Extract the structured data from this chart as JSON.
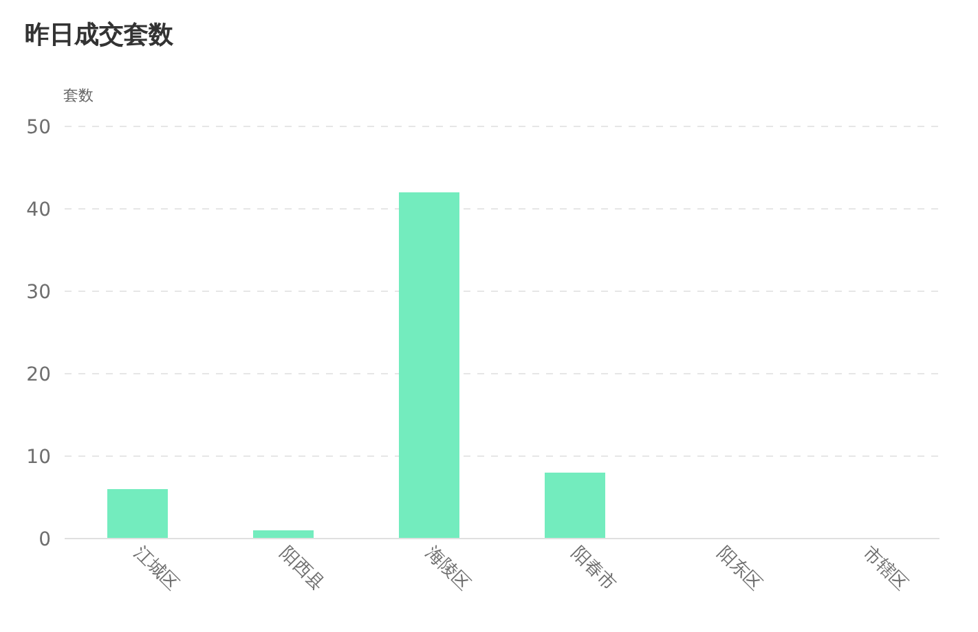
{
  "chart_data": {
    "type": "bar",
    "title": "昨日成交套数",
    "ylabel": "套数",
    "categories": [
      "江城区",
      "阳西县",
      "海陵区",
      "阳春市",
      "阳东区",
      "市辖区"
    ],
    "values": [
      6,
      1,
      42,
      8,
      0,
      0
    ],
    "color": "#73ecbe",
    "ylim": [
      0,
      50
    ],
    "yticks": [
      0,
      10,
      20,
      30,
      40,
      50
    ],
    "grid": "y"
  }
}
